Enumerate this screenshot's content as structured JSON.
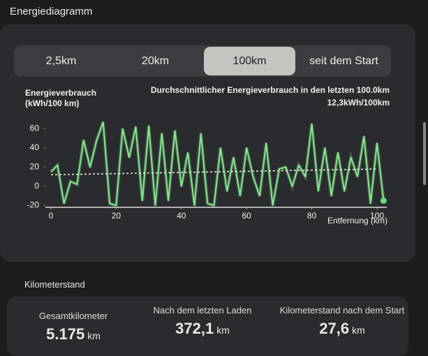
{
  "header": {
    "title": "Energiediagramm"
  },
  "tabs": [
    "2,5km",
    "20km",
    "100km",
    "seit dem Start"
  ],
  "selected_tab": 2,
  "chart_data": {
    "type": "line",
    "ylabel": [
      "Energieverbrauch",
      "(kWh/100 km)"
    ],
    "subtitle": "Durchschnittlicher Energieverbrauch in den letzten 100.0km",
    "average_label": "12,3kWh/100km",
    "xlabel": "Entfernung (km)",
    "x": [
      0,
      2,
      4,
      6,
      8,
      10,
      12,
      14,
      16,
      18,
      20,
      22,
      24,
      26,
      28,
      30,
      32,
      34,
      36,
      38,
      40,
      42,
      44,
      46,
      48,
      50,
      52,
      54,
      56,
      58,
      60,
      62,
      64,
      66,
      68,
      70,
      72,
      74,
      76,
      78,
      80,
      82,
      84,
      86,
      88,
      90,
      92,
      94,
      96,
      98,
      100,
      102
    ],
    "values": [
      15,
      22,
      -18,
      5,
      2,
      48,
      20,
      48,
      67,
      -18,
      -20,
      60,
      30,
      62,
      -15,
      63,
      -20,
      55,
      -15,
      58,
      0,
      35,
      -20,
      55,
      -18,
      -20,
      40,
      -5,
      30,
      -10,
      40,
      10,
      -10,
      45,
      -20,
      18,
      20,
      0,
      22,
      10,
      65,
      -5,
      40,
      -10,
      35,
      -5,
      30,
      10,
      52,
      -18,
      45,
      -15
    ],
    "color": "#86e890",
    "reference_line": {
      "x": [
        0,
        100
      ],
      "values": [
        12,
        18
      ]
    },
    "xlim": [
      0,
      103
    ],
    "ylim": [
      -22,
      72
    ],
    "xticks": [
      0,
      20,
      40,
      60,
      80,
      100
    ],
    "yticks": [
      -20,
      0,
      20,
      40,
      60
    ]
  },
  "odometer": {
    "title": "Kilometerstand",
    "stats": [
      {
        "label": "Gesamtkilometer",
        "value": "5.175",
        "unit": "km"
      },
      {
        "label": "Nach dem letzten Laden",
        "value": "372,1",
        "unit": "km"
      },
      {
        "label": "Kilometerstand nach dem Start",
        "value": "27,6",
        "unit": "km"
      }
    ]
  }
}
